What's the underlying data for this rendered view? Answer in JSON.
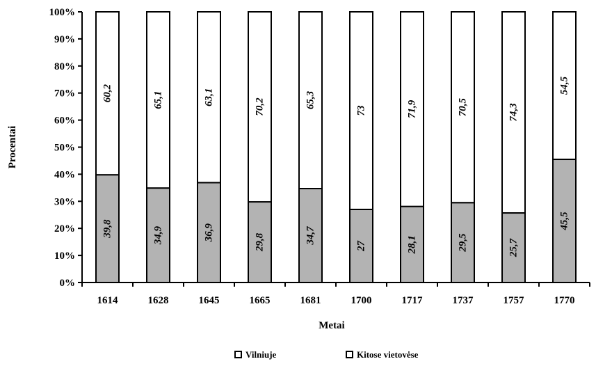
{
  "chart_data": {
    "type": "bar",
    "stacked": true,
    "percent": true,
    "categories": [
      "1614",
      "1628",
      "1645",
      "1665",
      "1681",
      "1700",
      "1717",
      "1737",
      "1757",
      "1770"
    ],
    "series": [
      {
        "name": "Vilniuje",
        "values": [
          39.8,
          34.9,
          36.9,
          29.8,
          34.7,
          27,
          28.1,
          29.5,
          25.7,
          45.5
        ],
        "labels": [
          "39,8",
          "34,9",
          "36,9",
          "29,8",
          "34,7",
          "27",
          "28,1",
          "29,5",
          "25,7",
          "45,5"
        ],
        "color": "#b3b3b3"
      },
      {
        "name": "Kitose vietovėse",
        "values": [
          60.2,
          65.1,
          63.1,
          70.2,
          65.3,
          73,
          71.9,
          70.5,
          74.3,
          54.5
        ],
        "labels": [
          "60,2",
          "65,1",
          "63,1",
          "70,2",
          "65,3",
          "73",
          "71,9",
          "70,5",
          "74,3",
          "54,5"
        ],
        "color": "#ffffff"
      }
    ],
    "xlabel": "Metai",
    "ylabel": "Procentai",
    "ylim": [
      0,
      100
    ],
    "yticks": [
      "0%",
      "10%",
      "20%",
      "30%",
      "40%",
      "50%",
      "60%",
      "70%",
      "80%",
      "90%",
      "100%"
    ],
    "grid": false,
    "legend_position": "bottom"
  }
}
